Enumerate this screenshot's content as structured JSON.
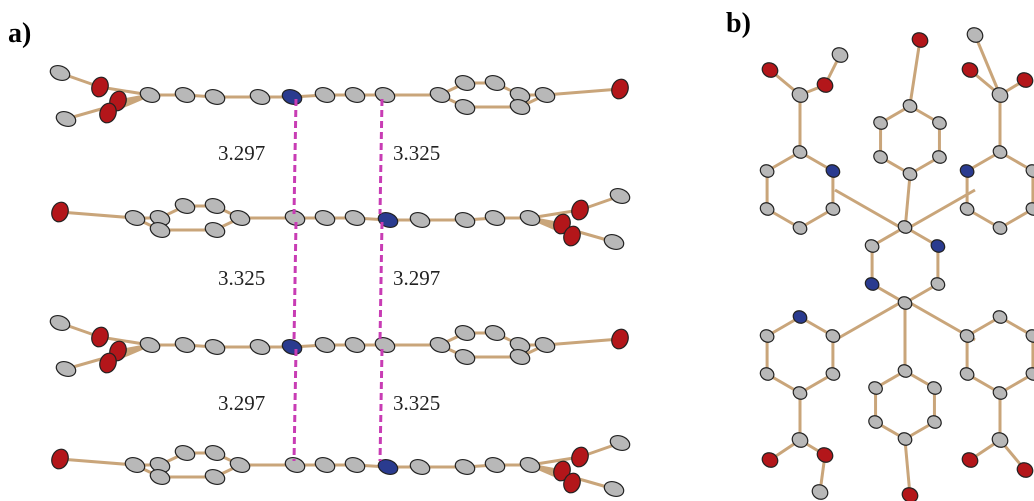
{
  "panel_a": {
    "label": "a)",
    "distances": [
      {
        "left": 3.297,
        "right": 3.325
      },
      {
        "left": 3.325,
        "right": 3.297
      },
      {
        "left": 3.297,
        "right": 3.325
      }
    ]
  },
  "panel_b": {
    "label": "b)"
  }
}
